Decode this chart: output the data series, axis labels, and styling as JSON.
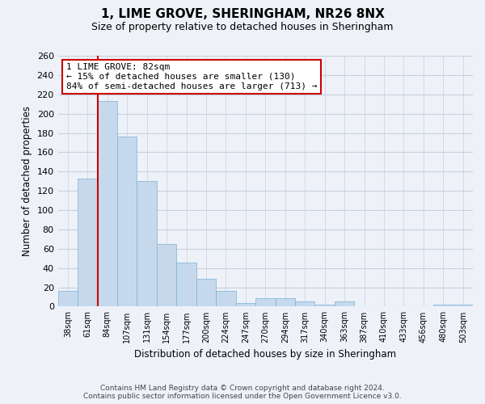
{
  "title": "1, LIME GROVE, SHERINGHAM, NR26 8NX",
  "subtitle": "Size of property relative to detached houses in Sheringham",
  "xlabel": "Distribution of detached houses by size in Sheringham",
  "ylabel": "Number of detached properties",
  "categories": [
    "38sqm",
    "61sqm",
    "84sqm",
    "107sqm",
    "131sqm",
    "154sqm",
    "177sqm",
    "200sqm",
    "224sqm",
    "247sqm",
    "270sqm",
    "294sqm",
    "317sqm",
    "340sqm",
    "363sqm",
    "387sqm",
    "410sqm",
    "433sqm",
    "456sqm",
    "480sqm",
    "503sqm"
  ],
  "values": [
    16,
    133,
    213,
    176,
    130,
    65,
    46,
    29,
    16,
    4,
    9,
    9,
    5,
    2,
    5,
    0,
    0,
    0,
    0,
    2,
    2
  ],
  "bar_color": "#c6d9ec",
  "bar_edge_color": "#7bafd4",
  "highlight_bar_index": 2,
  "highlight_line_color": "#cc0000",
  "annotation_line1": "1 LIME GROVE: 82sqm",
  "annotation_line2": "← 15% of detached houses are smaller (130)",
  "annotation_line3": "84% of semi-detached houses are larger (713) →",
  "annotation_box_color": "white",
  "annotation_box_edge_color": "#cc0000",
  "ylim": [
    0,
    260
  ],
  "yticks": [
    0,
    20,
    40,
    60,
    80,
    100,
    120,
    140,
    160,
    180,
    200,
    220,
    240,
    260
  ],
  "footer_line1": "Contains HM Land Registry data © Crown copyright and database right 2024.",
  "footer_line2": "Contains public sector information licensed under the Open Government Licence v3.0.",
  "background_color": "#eef2f8",
  "plot_bg_color": "#eef2f8",
  "grid_color": "#c8d0dc"
}
